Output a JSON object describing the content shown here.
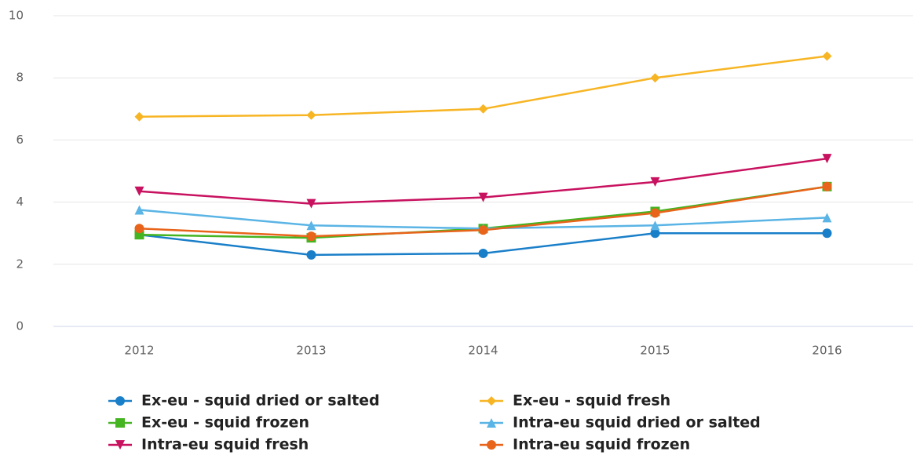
{
  "chart_data": {
    "type": "line",
    "categories": [
      "2012",
      "2013",
      "2014",
      "2015",
      "2016"
    ],
    "ylim": [
      0,
      10
    ],
    "yticks": [
      0,
      2,
      4,
      6,
      8,
      10
    ],
    "grid": true,
    "series": [
      {
        "name": "Ex-eu - squid dried or salted",
        "color": "#1a7fc9",
        "marker": "circle",
        "values": [
          2.95,
          2.3,
          2.35,
          3,
          3
        ]
      },
      {
        "name": "Ex-eu - squid fresh",
        "color": "#f7b524",
        "marker": "diamond",
        "values": [
          6.75,
          6.8,
          7,
          8,
          8.7
        ]
      },
      {
        "name": "Ex-eu - squid frozen",
        "color": "#44b421",
        "marker": "square",
        "values": [
          2.95,
          2.85,
          3.15,
          3.7,
          4.5
        ]
      },
      {
        "name": "Intra-eu squid dried or salted",
        "color": "#5ab4e5",
        "marker": "triangle",
        "values": [
          3.75,
          3.25,
          3.15,
          3.25,
          3.5
        ]
      },
      {
        "name": "Intra-eu squid fresh",
        "color": "#c8115f",
        "marker": "triangle-down",
        "values": [
          4.35,
          3.95,
          4.15,
          4.65,
          5.4
        ]
      },
      {
        "name": "Intra-eu squid frozen",
        "color": "#e8641b",
        "marker": "circle",
        "values": [
          3.15,
          2.9,
          3.1,
          3.65,
          4.5
        ]
      }
    ]
  }
}
